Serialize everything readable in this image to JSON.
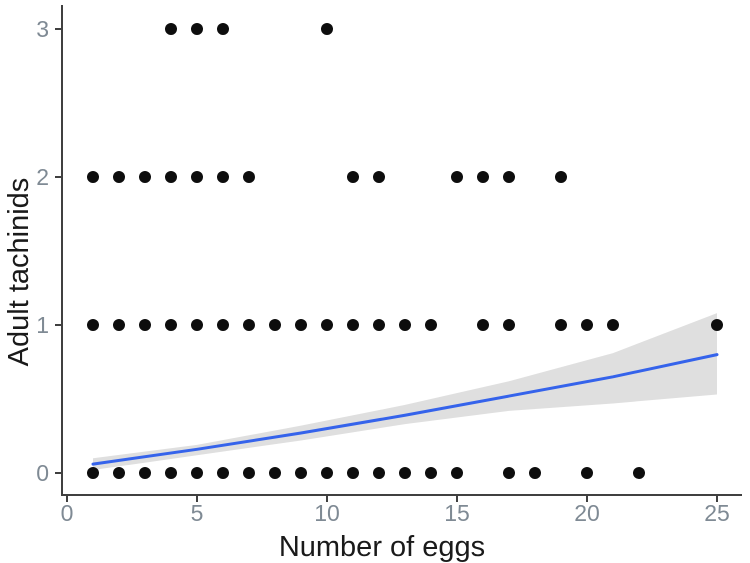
{
  "chart_data": {
    "type": "scatter",
    "title": "",
    "xlabel": "Number of eggs",
    "ylabel": "Adult tachinids",
    "x_ticks": [
      0,
      5,
      10,
      15,
      20,
      25
    ],
    "y_ticks": [
      0,
      1,
      2,
      3
    ],
    "xlim": [
      0,
      26
    ],
    "ylim": [
      -0.15,
      3.15
    ],
    "grid": "off",
    "legend": "none",
    "points_by_row": [
      {
        "y": 0,
        "x": [
          1,
          2,
          3,
          4,
          5,
          6,
          7,
          8,
          9,
          10,
          11,
          12,
          13,
          14,
          15,
          17,
          18,
          20,
          22
        ]
      },
      {
        "y": 1,
        "x": [
          1,
          2,
          3,
          4,
          5,
          6,
          7,
          8,
          9,
          10,
          11,
          12,
          13,
          14,
          16,
          17,
          19,
          20,
          21,
          25
        ]
      },
      {
        "y": 2,
        "x": [
          1,
          2,
          3,
          4,
          5,
          6,
          7,
          11,
          12,
          15,
          16,
          17,
          19
        ]
      },
      {
        "y": 3,
        "x": [
          4,
          5,
          6,
          10
        ]
      }
    ],
    "smooth_line": {
      "x": [
        1,
        5,
        9,
        13,
        17,
        21,
        25
      ],
      "y": [
        0.06,
        0.16,
        0.27,
        0.39,
        0.52,
        0.65,
        0.8
      ]
    },
    "confidence_band": {
      "x": [
        1,
        5,
        9,
        13,
        17,
        21,
        25
      ],
      "upper": [
        0.1,
        0.19,
        0.32,
        0.46,
        0.62,
        0.81,
        1.08
      ],
      "lower": [
        0.02,
        0.12,
        0.22,
        0.33,
        0.42,
        0.47,
        0.53
      ]
    },
    "colors": {
      "point": "#0d0d0d",
      "line": "#3563EB",
      "band": "#d9d9d9",
      "axis": "#404040",
      "tick_label": "#7f8a94",
      "background": "#ffffff"
    }
  }
}
